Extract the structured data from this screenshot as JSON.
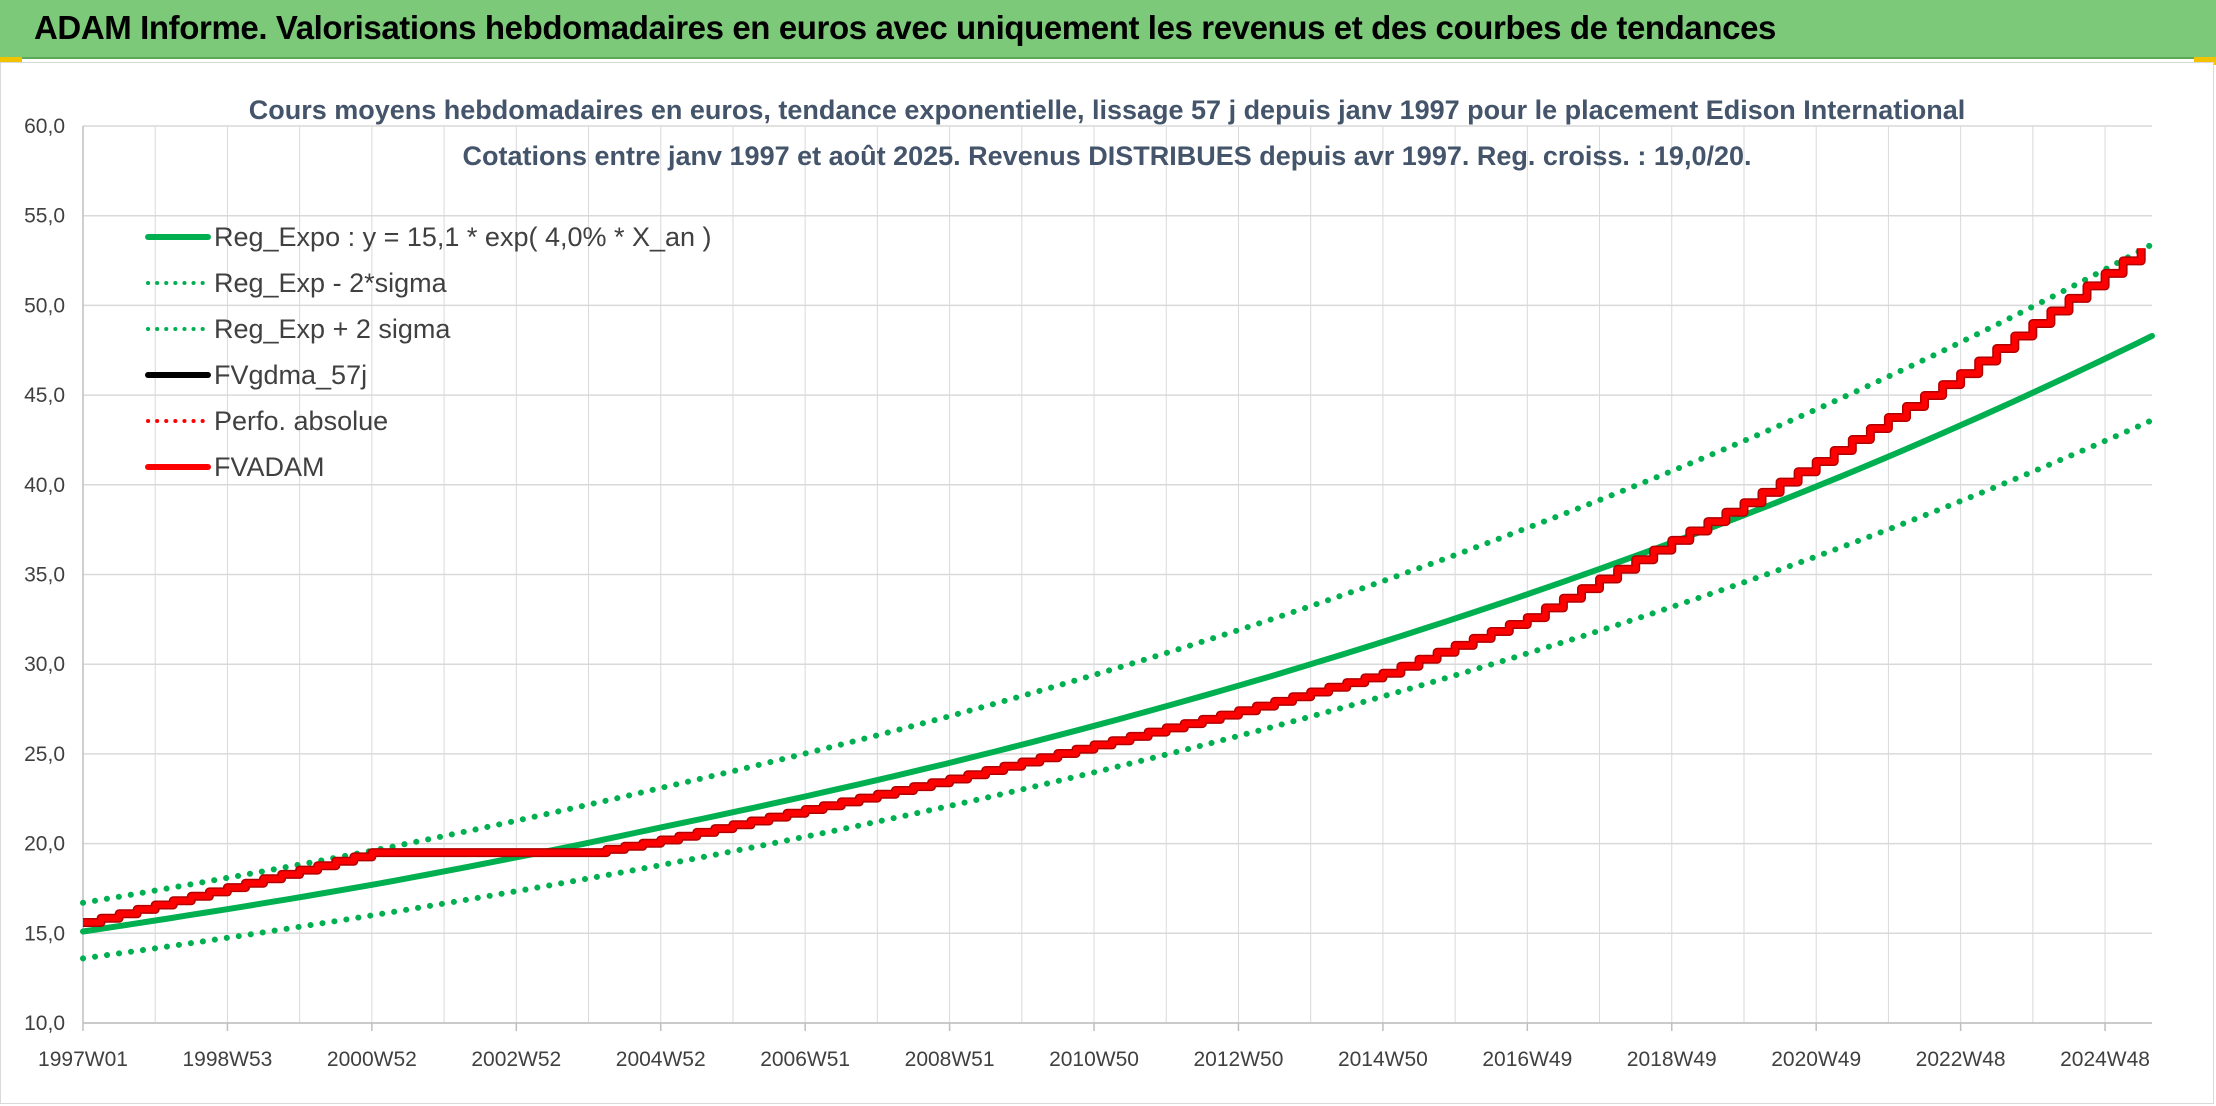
{
  "banner": {
    "title": "ADAM Informe. Valorisations hebdomadaires en euros avec uniquement les revenus et des courbes de tendances"
  },
  "colors": {
    "banner": "#7dc97a",
    "reg_green": "#00b050",
    "red": "#ff0000",
    "black": "#000000",
    "grid": "#d9d9d9"
  },
  "chart_data": {
    "type": "line",
    "title_line1": "Cours moyens hebdomadaires en euros, tendance exponentielle, lissage 57 j depuis janv 1997 pour le placement Edison International",
    "title_line2": "Cotations entre janv 1997 et août 2025. Revenus DISTRIBUES depuis avr 1997. Reg. croiss. : 19,0/20.",
    "xlabel": "",
    "ylabel": "",
    "ylim": [
      10,
      60
    ],
    "yticks": [
      "10,0",
      "15,0",
      "20,0",
      "25,0",
      "30,0",
      "35,0",
      "40,0",
      "45,0",
      "50,0",
      "55,0",
      "60,0"
    ],
    "xlim": [
      1997.0,
      2025.65
    ],
    "xticks": [
      {
        "label": "1997W01",
        "x": 1997.0
      },
      {
        "label": "1998W53",
        "x": 1999.0
      },
      {
        "label": "2000W52",
        "x": 2001.0
      },
      {
        "label": "2002W52",
        "x": 2003.0
      },
      {
        "label": "2004W52",
        "x": 2005.0
      },
      {
        "label": "2006W51",
        "x": 2007.0
      },
      {
        "label": "2008W51",
        "x": 2009.0
      },
      {
        "label": "2010W50",
        "x": 2011.0
      },
      {
        "label": "2012W50",
        "x": 2013.0
      },
      {
        "label": "2014W50",
        "x": 2015.0
      },
      {
        "label": "2016W49",
        "x": 2017.0
      },
      {
        "label": "2018W49",
        "x": 2019.0
      },
      {
        "label": "2020W49",
        "x": 2021.0
      },
      {
        "label": "2022W48",
        "x": 2023.0
      },
      {
        "label": "2024W48",
        "x": 2025.0
      }
    ],
    "grid": true,
    "legend_position": "top-left",
    "series": [
      {
        "name": "Reg_Expo : y = 15,1 * exp( 4,0% *  X_an )",
        "style": "solid",
        "color": "#00b050",
        "x": [
          1997.0,
          2001.0,
          2005.0,
          2009.0,
          2013.0,
          2017.0,
          2021.0,
          2025.65
        ],
        "y": [
          15.1,
          17.7,
          20.9,
          24.5,
          28.8,
          33.9,
          39.9,
          48.3
        ]
      },
      {
        "name": "Reg_Exp - 2*sigma",
        "style": "dotted",
        "color": "#00b050",
        "x": [
          1997.0,
          2001.0,
          2005.0,
          2009.0,
          2013.0,
          2017.0,
          2021.0,
          2025.65
        ],
        "y": [
          13.6,
          16.0,
          18.8,
          22.1,
          26.0,
          30.6,
          36.0,
          43.6
        ]
      },
      {
        "name": "Reg_Exp + 2 sigma",
        "style": "dotted",
        "color": "#00b050",
        "x": [
          1997.0,
          2001.0,
          2005.0,
          2009.0,
          2013.0,
          2017.0,
          2021.0,
          2025.65
        ],
        "y": [
          16.7,
          19.6,
          23.1,
          27.1,
          31.9,
          37.6,
          44.2,
          53.4
        ]
      },
      {
        "name": "FVgdma_57j",
        "style": "solid",
        "color": "#000000",
        "x": [],
        "y": []
      },
      {
        "name": "Perfo. absolue",
        "style": "dotted",
        "color": "#ff0000",
        "x": [],
        "y": []
      },
      {
        "name": "FVADAM",
        "style": "solid-thick",
        "color": "#ff0000",
        "x": [
          1997.0,
          2001.0,
          2004.0,
          2005.0,
          2009.0,
          2013.0,
          2015.0,
          2017.0,
          2019.0,
          2020.0,
          2021.0,
          2023.0,
          2025.65
        ],
        "y": [
          15.6,
          19.5,
          19.5,
          20.2,
          23.6,
          27.4,
          29.5,
          32.6,
          36.9,
          39.0,
          41.3,
          46.2,
          53.6
        ]
      }
    ]
  }
}
